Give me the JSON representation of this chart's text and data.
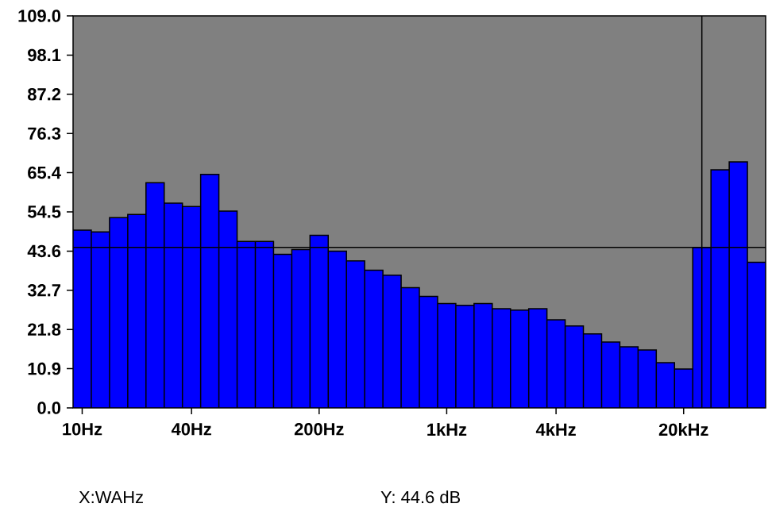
{
  "chart_data": {
    "type": "bar",
    "categories": [
      "10Hz",
      null,
      null,
      null,
      null,
      null,
      "40Hz",
      null,
      null,
      null,
      null,
      null,
      null,
      "200Hz",
      null,
      null,
      null,
      null,
      null,
      null,
      "1kHz",
      null,
      null,
      null,
      null,
      null,
      "4kHz",
      null,
      null,
      null,
      null,
      null,
      null,
      "20kHz",
      null,
      null,
      null,
      null
    ],
    "values": [
      49.4,
      48.9,
      52.9,
      53.8,
      62.6,
      56.9,
      56.0,
      64.9,
      54.7,
      46.3,
      46.3,
      42.7,
      44.0,
      48.0,
      43.6,
      40.9,
      38.3,
      36.9,
      33.4,
      31.0,
      29.0,
      28.5,
      29.0,
      27.6,
      27.2,
      27.6,
      24.5,
      22.8,
      20.6,
      18.3,
      17.0,
      16.1,
      12.6,
      10.8,
      44.6,
      66.2,
      68.4,
      40.5
    ],
    "color": "#0000ff",
    "ylim": [
      0,
      109
    ],
    "yticks": [
      {
        "value": 0,
        "label": "0.0"
      },
      10.9,
      21.8,
      32.7,
      43.6,
      54.5,
      65.4,
      76.3,
      87.2,
      98.1,
      {
        "value": 109,
        "label": "109.0"
      }
    ],
    "ref_lines": [
      {
        "axis": "y",
        "value": 44.6
      }
    ],
    "annotations": [
      "X:WAHz",
      "Y: 44.6 dB"
    ]
  }
}
